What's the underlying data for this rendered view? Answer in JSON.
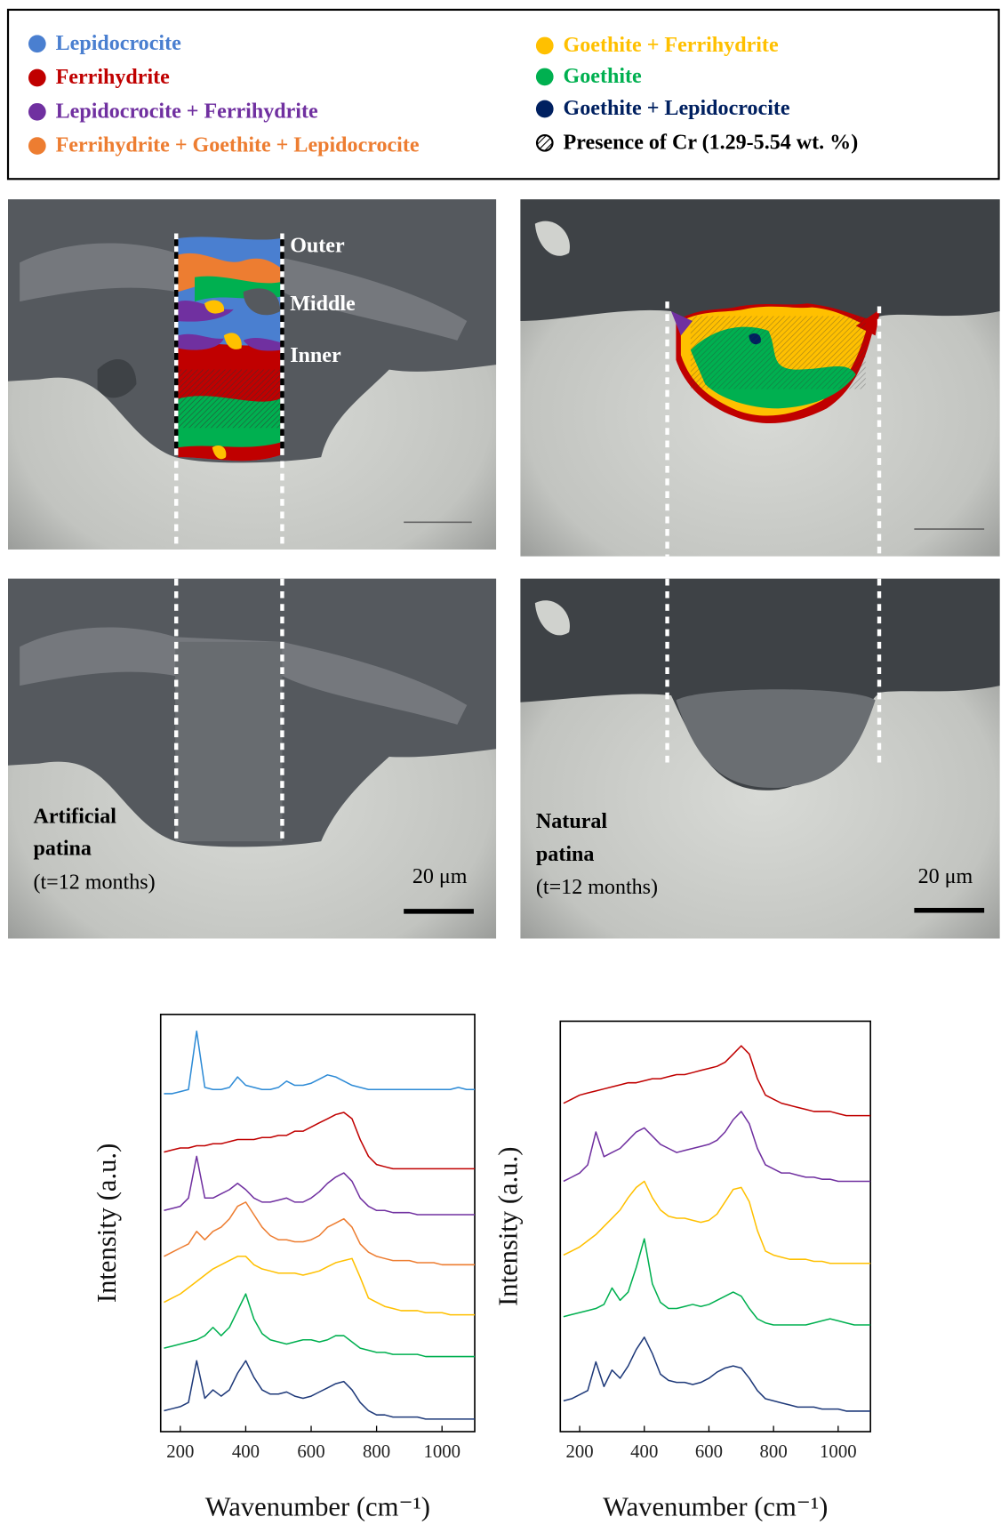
{
  "legend": [
    {
      "label": "Lepidocrocite",
      "color": "#4a7fd0"
    },
    {
      "label": "Ferrihydrite",
      "color": "#c00000"
    },
    {
      "label": "Lepidocrocite + Ferrihydrite",
      "color": "#7030a0"
    },
    {
      "label": "Ferrihydrite + Goethite + Lepidocrocite",
      "color": "#ed7d31"
    },
    {
      "label": "Goethite + Ferrihydrite",
      "color": "#ffc000"
    },
    {
      "label": "Goethite",
      "color": "#00b050"
    },
    {
      "label": "Goethite + Lepidocrocite",
      "color": "#002060"
    },
    {
      "label": "Presence of Cr (1.29-5.54 wt. %)",
      "color": "#000000"
    }
  ],
  "micrographs": {
    "layer_labels": [
      "Outer",
      "Middle",
      "Inner"
    ],
    "artificial": [
      "Artificial",
      "patina",
      "(t=12 months)"
    ],
    "natural": [
      "Natural",
      "patina",
      "(t=12 months)"
    ],
    "scale_bar": "20 μm"
  },
  "chart_data": [
    {
      "type": "line",
      "xlabel": "Wavenumber (cm⁻¹)",
      "ylabel": "Intensity (a.u.)",
      "xlim": [
        140,
        1100
      ],
      "xticks": [
        200,
        400,
        600,
        800,
        1000
      ],
      "ylim": [
        0,
        10
      ],
      "x": [
        150,
        175,
        200,
        225,
        250,
        275,
        300,
        325,
        350,
        375,
        400,
        425,
        450,
        475,
        500,
        525,
        550,
        575,
        600,
        625,
        650,
        675,
        700,
        725,
        750,
        775,
        800,
        825,
        850,
        875,
        900,
        925,
        950,
        975,
        1000,
        1025,
        1050,
        1075,
        1100
      ],
      "series": [
        {
          "color": "#2e8bd6",
          "values": [
            8.1,
            8.1,
            8.15,
            8.2,
            9.6,
            8.25,
            8.2,
            8.2,
            8.25,
            8.5,
            8.3,
            8.25,
            8.2,
            8.2,
            8.25,
            8.4,
            8.3,
            8.3,
            8.35,
            8.45,
            8.55,
            8.5,
            8.4,
            8.3,
            8.25,
            8.2,
            8.2,
            8.2,
            8.2,
            8.2,
            8.2,
            8.2,
            8.2,
            8.2,
            8.2,
            8.2,
            8.25,
            8.2,
            8.2
          ]
        },
        {
          "color": "#c00000",
          "values": [
            6.7,
            6.75,
            6.8,
            6.8,
            6.85,
            6.85,
            6.9,
            6.9,
            6.95,
            7.0,
            7.0,
            7.0,
            7.05,
            7.05,
            7.1,
            7.1,
            7.2,
            7.2,
            7.3,
            7.4,
            7.5,
            7.6,
            7.65,
            7.5,
            7.0,
            6.6,
            6.4,
            6.35,
            6.3,
            6.3,
            6.3,
            6.3,
            6.3,
            6.3,
            6.3,
            6.3,
            6.3,
            6.3,
            6.3
          ]
        },
        {
          "color": "#7030a0",
          "values": [
            5.3,
            5.35,
            5.4,
            5.6,
            6.6,
            5.6,
            5.6,
            5.7,
            5.8,
            5.95,
            5.8,
            5.6,
            5.5,
            5.5,
            5.55,
            5.6,
            5.5,
            5.5,
            5.6,
            5.75,
            5.95,
            6.1,
            6.2,
            6.0,
            5.6,
            5.4,
            5.3,
            5.3,
            5.25,
            5.25,
            5.25,
            5.2,
            5.2,
            5.2,
            5.2,
            5.2,
            5.2,
            5.2,
            5.2
          ]
        },
        {
          "color": "#ed7d31",
          "values": [
            4.2,
            4.3,
            4.4,
            4.5,
            4.8,
            4.6,
            4.8,
            4.9,
            5.1,
            5.4,
            5.5,
            5.2,
            4.9,
            4.7,
            4.6,
            4.6,
            4.55,
            4.55,
            4.6,
            4.7,
            4.9,
            5.0,
            5.1,
            4.9,
            4.5,
            4.3,
            4.2,
            4.15,
            4.1,
            4.1,
            4.1,
            4.05,
            4.05,
            4.05,
            4.0,
            4.0,
            4.0,
            4.0,
            4.0
          ]
        },
        {
          "color": "#ffc000",
          "values": [
            3.1,
            3.2,
            3.3,
            3.45,
            3.6,
            3.75,
            3.9,
            4.0,
            4.1,
            4.2,
            4.2,
            4.0,
            3.9,
            3.85,
            3.8,
            3.8,
            3.8,
            3.75,
            3.8,
            3.85,
            3.95,
            4.05,
            4.1,
            4.15,
            3.7,
            3.2,
            3.1,
            3.0,
            2.95,
            2.9,
            2.9,
            2.9,
            2.85,
            2.85,
            2.85,
            2.8,
            2.8,
            2.8,
            2.8
          ]
        },
        {
          "color": "#00b050",
          "values": [
            2.0,
            2.05,
            2.1,
            2.15,
            2.2,
            2.3,
            2.5,
            2.3,
            2.5,
            2.9,
            3.3,
            2.7,
            2.35,
            2.2,
            2.15,
            2.1,
            2.15,
            2.2,
            2.2,
            2.15,
            2.2,
            2.3,
            2.3,
            2.15,
            2.0,
            1.95,
            1.9,
            1.9,
            1.85,
            1.85,
            1.85,
            1.85,
            1.8,
            1.8,
            1.8,
            1.8,
            1.8,
            1.8,
            1.8
          ]
        },
        {
          "color": "#1f3a7a",
          "values": [
            0.5,
            0.55,
            0.6,
            0.7,
            1.7,
            0.8,
            1.0,
            0.85,
            1.0,
            1.4,
            1.7,
            1.3,
            1.0,
            0.9,
            0.9,
            0.95,
            0.85,
            0.8,
            0.85,
            0.95,
            1.05,
            1.15,
            1.2,
            1.0,
            0.7,
            0.5,
            0.4,
            0.4,
            0.35,
            0.35,
            0.35,
            0.35,
            0.3,
            0.3,
            0.3,
            0.3,
            0.3,
            0.3,
            0.3
          ]
        }
      ]
    },
    {
      "type": "line",
      "xlabel": "Wavenumber (cm⁻¹)",
      "ylabel": "Intensity (a.u.)",
      "xlim": [
        140,
        1100
      ],
      "xticks": [
        200,
        400,
        600,
        800,
        1000
      ],
      "ylim": [
        0,
        10
      ],
      "x": [
        150,
        175,
        200,
        225,
        250,
        275,
        300,
        325,
        350,
        375,
        400,
        425,
        450,
        475,
        500,
        525,
        550,
        575,
        600,
        625,
        650,
        675,
        700,
        725,
        750,
        775,
        800,
        825,
        850,
        875,
        900,
        925,
        950,
        975,
        1000,
        1025,
        1050,
        1075,
        1100
      ],
      "series": [
        {
          "color": "#c00000",
          "values": [
            8.0,
            8.1,
            8.2,
            8.25,
            8.3,
            8.35,
            8.4,
            8.45,
            8.5,
            8.5,
            8.55,
            8.6,
            8.6,
            8.65,
            8.7,
            8.7,
            8.75,
            8.8,
            8.85,
            8.9,
            9.0,
            9.2,
            9.4,
            9.2,
            8.6,
            8.2,
            8.1,
            8.0,
            7.95,
            7.9,
            7.85,
            7.8,
            7.8,
            7.8,
            7.75,
            7.7,
            7.7,
            7.7,
            7.7
          ]
        },
        {
          "color": "#7030a0",
          "values": [
            6.1,
            6.2,
            6.3,
            6.5,
            7.3,
            6.7,
            6.8,
            6.9,
            7.1,
            7.3,
            7.4,
            7.2,
            7.0,
            6.9,
            6.8,
            6.85,
            6.9,
            6.95,
            7.0,
            7.1,
            7.3,
            7.6,
            7.8,
            7.5,
            6.9,
            6.5,
            6.4,
            6.3,
            6.3,
            6.25,
            6.2,
            6.2,
            6.15,
            6.15,
            6.1,
            6.1,
            6.1,
            6.1,
            6.1
          ]
        },
        {
          "color": "#ffc000",
          "values": [
            4.3,
            4.4,
            4.5,
            4.65,
            4.8,
            5.0,
            5.2,
            5.4,
            5.7,
            5.95,
            6.1,
            5.7,
            5.4,
            5.25,
            5.2,
            5.2,
            5.15,
            5.1,
            5.15,
            5.3,
            5.6,
            5.9,
            5.95,
            5.6,
            4.9,
            4.4,
            4.3,
            4.25,
            4.2,
            4.2,
            4.2,
            4.15,
            4.15,
            4.1,
            4.1,
            4.1,
            4.1,
            4.1,
            4.1
          ]
        },
        {
          "color": "#00b050",
          "values": [
            2.8,
            2.85,
            2.9,
            2.95,
            3.0,
            3.1,
            3.5,
            3.2,
            3.4,
            4.0,
            4.7,
            3.6,
            3.15,
            3.0,
            3.0,
            3.05,
            3.1,
            3.05,
            3.1,
            3.2,
            3.3,
            3.4,
            3.3,
            3.0,
            2.75,
            2.65,
            2.6,
            2.6,
            2.6,
            2.6,
            2.6,
            2.65,
            2.7,
            2.75,
            2.7,
            2.65,
            2.6,
            2.6,
            2.6
          ]
        },
        {
          "color": "#1f3a7a",
          "values": [
            0.75,
            0.8,
            0.9,
            1.0,
            1.7,
            1.1,
            1.5,
            1.3,
            1.6,
            2.0,
            2.3,
            1.9,
            1.4,
            1.25,
            1.2,
            1.2,
            1.15,
            1.2,
            1.3,
            1.45,
            1.55,
            1.6,
            1.55,
            1.3,
            1.0,
            0.8,
            0.75,
            0.7,
            0.65,
            0.6,
            0.6,
            0.6,
            0.55,
            0.55,
            0.55,
            0.5,
            0.5,
            0.5,
            0.5
          ]
        }
      ]
    }
  ]
}
